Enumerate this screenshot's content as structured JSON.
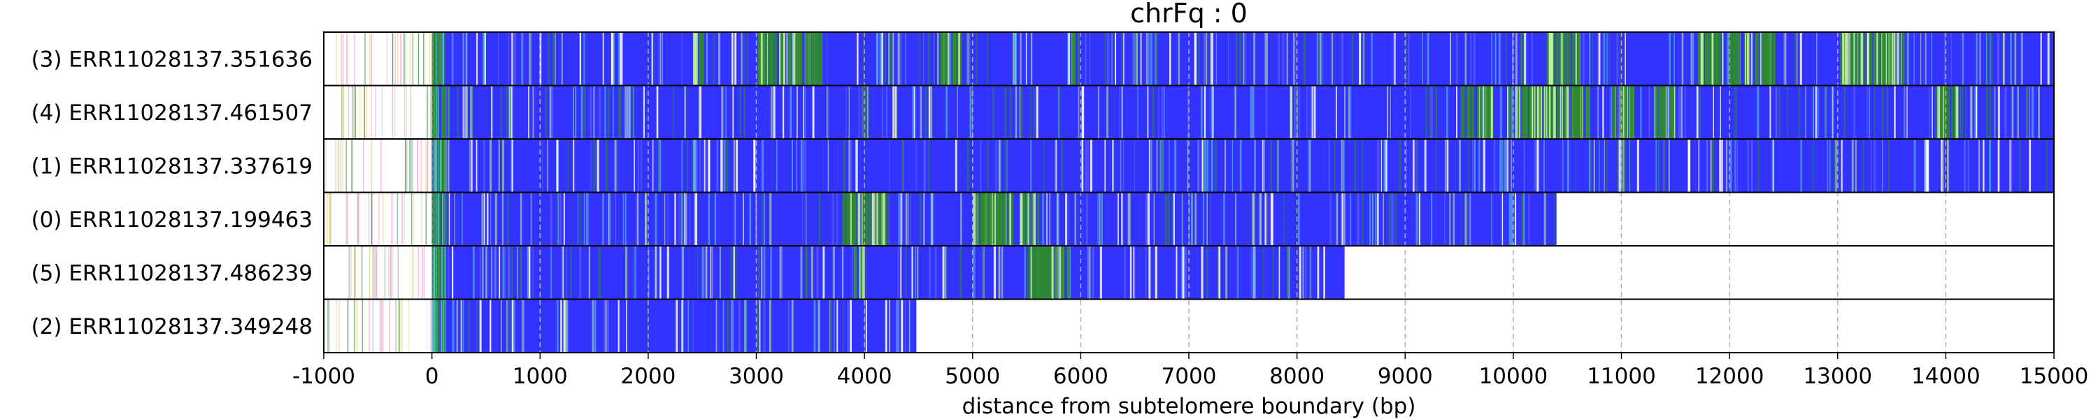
{
  "chart_data": {
    "type": "heatmap",
    "title": "chrFq : 0",
    "xlabel": "distance from subtelomere boundary (bp)",
    "ylabel": "",
    "xlim": [
      -1000,
      15000
    ],
    "xticks": [
      -1000,
      0,
      1000,
      2000,
      3000,
      4000,
      5000,
      6000,
      7000,
      8000,
      9000,
      10000,
      11000,
      12000,
      13000,
      14000,
      15000
    ],
    "grid": "vertical dashed",
    "colors": {
      "base": "#3333ff",
      "green": "#2e8b2e",
      "cyan": "#5fd3e0",
      "light": "#c8f5a0",
      "pink": "#ff7fbf",
      "yellow": "#f0d060"
    },
    "reads": [
      {
        "label": "(3) ERR11028137.351636",
        "start": -1000,
        "end": 15000,
        "green_regions": [
          [
            2400,
            2500
          ],
          [
            3000,
            3600
          ],
          [
            4700,
            4900
          ],
          [
            5900,
            6000
          ],
          [
            10300,
            10600
          ],
          [
            11700,
            12400
          ],
          [
            13000,
            13600
          ]
        ]
      },
      {
        "label": "(4) ERR11028137.461507",
        "start": -1000,
        "end": 15000,
        "green_regions": [
          [
            9500,
            9800
          ],
          [
            9950,
            10700
          ],
          [
            10900,
            11100
          ],
          [
            11300,
            11500
          ],
          [
            13900,
            14100
          ]
        ]
      },
      {
        "label": "(1) ERR11028137.337619",
        "start": -1000,
        "end": 15000,
        "green_regions": []
      },
      {
        "label": "(0) ERR11028137.199463",
        "start": -1000,
        "end": 10400,
        "green_regions": [
          [
            3800,
            4200
          ],
          [
            5000,
            5600
          ]
        ]
      },
      {
        "label": "(5) ERR11028137.486239",
        "start": -1000,
        "end": 8440,
        "green_regions": [
          [
            3900,
            4000
          ],
          [
            5500,
            5900
          ]
        ]
      },
      {
        "label": "(2) ERR11028137.349248",
        "start": -1000,
        "end": 4480,
        "green_regions": []
      }
    ]
  }
}
